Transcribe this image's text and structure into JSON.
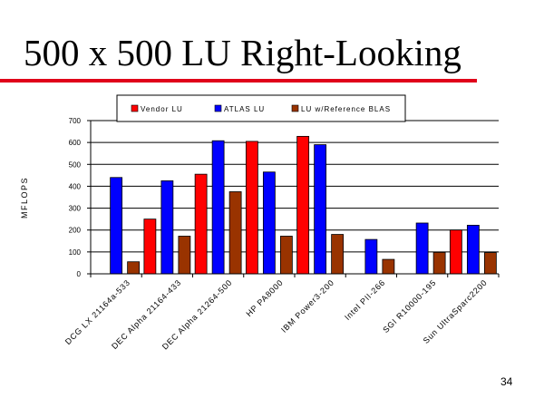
{
  "slide": {
    "title": "500 x 500 LU Right-Looking",
    "page_number": "34"
  },
  "colors": {
    "title_rule": "#e0001a",
    "series": [
      "#ff0000",
      "#0000ff",
      "#993300"
    ]
  },
  "chart_data": {
    "type": "bar",
    "title": "",
    "xlabel": "",
    "ylabel": "MFLOPS",
    "ylim": [
      0,
      700
    ],
    "yticks": [
      0,
      100,
      200,
      300,
      400,
      500,
      600,
      700
    ],
    "grid": true,
    "legend_position": "top",
    "categories": [
      "DCG LX 21164a-533",
      "DEC Alpha 21164-433",
      "DEC Alpha 21264-500",
      "HP PA8000",
      "IBM Power3-200",
      "Intel PII-266",
      "SGI R10000-195",
      "Sun UltraSparc2200"
    ],
    "series": [
      {
        "name": "Vendor LU",
        "values": [
          null,
          250,
          455,
          605,
          628,
          null,
          null,
          200
        ]
      },
      {
        "name": "ATLAS LU",
        "values": [
          440,
          425,
          608,
          465,
          590,
          157,
          232,
          222
        ]
      },
      {
        "name": "LU w/Reference BLAS",
        "values": [
          55,
          172,
          375,
          172,
          180,
          66,
          98,
          97
        ]
      }
    ]
  }
}
